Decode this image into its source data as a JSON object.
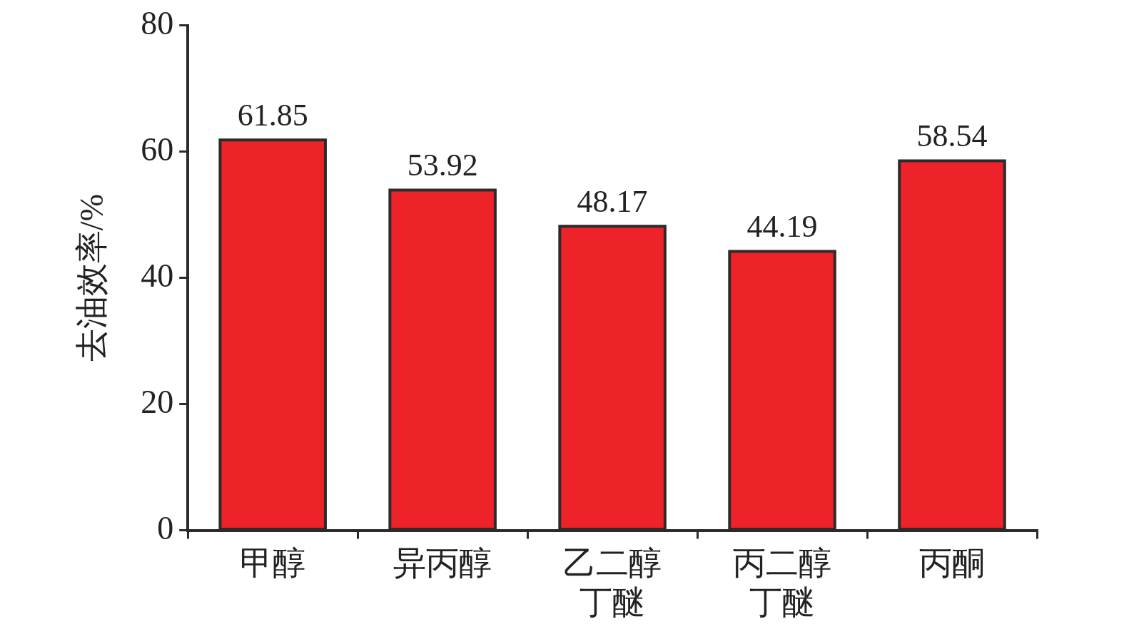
{
  "chart_data": {
    "type": "bar",
    "ylabel": "去油效率/%",
    "categories": [
      "甲醇",
      "异丙醇",
      "乙二醇丁醚",
      "丙二醇丁醚",
      "丙酮"
    ],
    "values": [
      61.85,
      53.92,
      48.17,
      44.19,
      58.54
    ],
    "color": "#ee2229",
    "ylim": [
      0,
      80
    ],
    "yticks": [
      0,
      20,
      40,
      60,
      80
    ],
    "grid": false,
    "data_labels": true,
    "legend": false
  }
}
